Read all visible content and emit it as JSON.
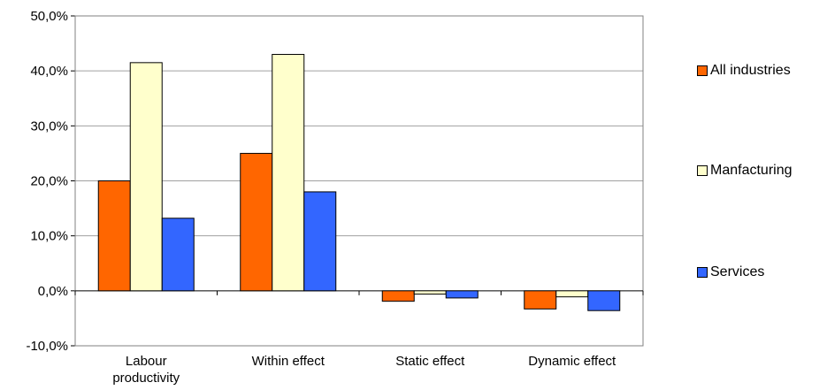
{
  "chart_data": {
    "type": "bar",
    "categories": [
      "Labour productivity",
      "Within effect",
      "Static effect",
      "Dynamic effect"
    ],
    "category_lines": [
      [
        "Labour",
        "productivity"
      ],
      [
        "Within effect"
      ],
      [
        "Static effect"
      ],
      [
        "Dynamic effect"
      ]
    ],
    "series": [
      {
        "name": "All industries",
        "color": "#ff6600",
        "values": [
          20.0,
          25.0,
          -1.9,
          -3.3
        ]
      },
      {
        "name": "Manfacturing",
        "color": "#ffffcc",
        "values": [
          41.5,
          43.0,
          -0.6,
          -1.1
        ]
      },
      {
        "name": "Services",
        "color": "#3366ff",
        "values": [
          13.2,
          18.0,
          -1.3,
          -3.6
        ]
      }
    ],
    "ylim": [
      -10,
      50
    ],
    "yticks": [
      -10,
      0,
      10,
      20,
      30,
      40,
      50
    ],
    "ytick_labels": [
      "-10,0%",
      "0,0%",
      "10,0%",
      "20,0%",
      "30,0%",
      "40,0%",
      "50,0%"
    ],
    "grid": true,
    "legend_position": "right"
  }
}
